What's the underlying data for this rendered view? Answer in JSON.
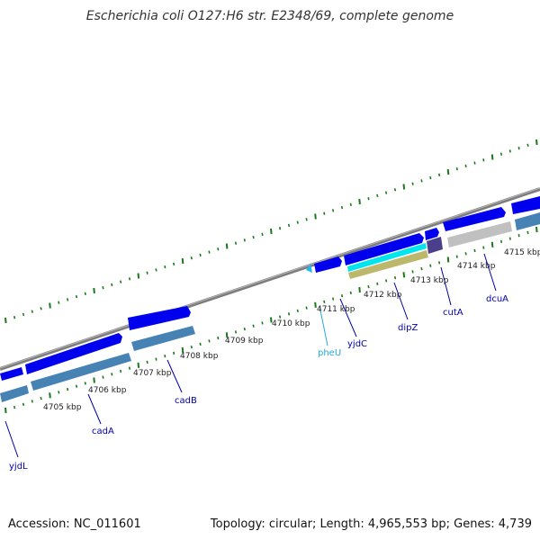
{
  "title": "Escherichia coli O127:H6 str. E2348/69, complete genome",
  "footer": {
    "accession": "Accession: NC_011601",
    "stats": "Topology: circular; Length: 4,965,553 bp; Genes: 4,739"
  },
  "colors": {
    "backbone": "#8a8a8a",
    "cds_forward": "#0000ee",
    "gene_bar": "#4682b4",
    "pseudo_gene": "#c0c0c0",
    "trna": "#22b8e8",
    "misc_feature_1": "#00e5ee",
    "misc_feature_2": "#bdb76b",
    "tick_marks": "#1a7a1a",
    "gene_label": "#0000aa",
    "trna_label": "#22aadd",
    "scale_label": "#222222"
  },
  "scale_labels": [
    "4705 kbp",
    "4706 kbp",
    "4707 kbp",
    "4708 kbp",
    "4709 kbp",
    "4710 kbp",
    "4711 kbp",
    "4712 kbp",
    "4713 kbp",
    "4714 kbp",
    "4715 kbp"
  ],
  "gene_labels": [
    "yjdL",
    "cadA",
    "cadB",
    "pheU",
    "yjdC",
    "dipZ",
    "cutA",
    "dcuA"
  ]
}
